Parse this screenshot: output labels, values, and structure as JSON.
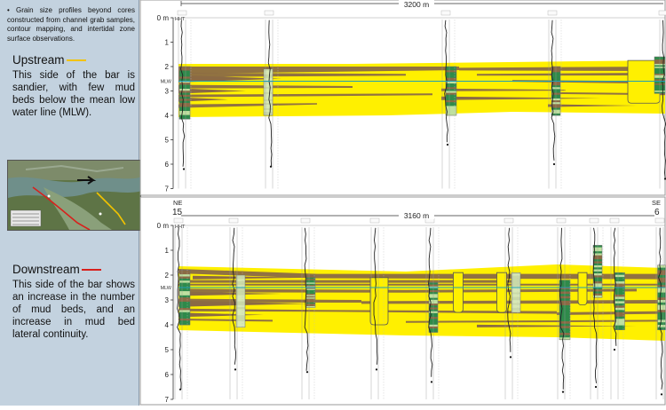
{
  "sidebar": {
    "note": "Grain size profiles beyond cores constructed from channel grab samples, contour mapping, and intertidal zone surface observations.",
    "upstream": {
      "title": "Upstream",
      "line_color": "#f2c300",
      "text": "This side of the bar is sandier, with few mud beds below the mean low water line (MLW)."
    },
    "downstream": {
      "title": "Downstream",
      "line_color": "#d8201c",
      "text": "This side of the bar shows an increase in the number of mud beds, and an increase in mud bed lateral continuity."
    }
  },
  "colors": {
    "sand": "#fff000",
    "mud": "#8b6a44",
    "green": "#2e8a4a",
    "water": "#1e9fb5"
  },
  "upper_panel": {
    "distance_label": "3200 m",
    "axis": {
      "ticks": [
        "0 m",
        "1",
        "2",
        "3",
        "4",
        "5",
        "6",
        "7"
      ],
      "hht": "HHT",
      "mlw": "MLW"
    }
  },
  "lower_panel": {
    "distance_label": "3160 m",
    "left_end": {
      "dir": "NE",
      "num": "15"
    },
    "right_end": {
      "dir": "SE",
      "num": "6"
    },
    "axis": {
      "ticks": [
        "0 m",
        "1",
        "2",
        "3",
        "4",
        "5",
        "6",
        "7"
      ],
      "hht": "HHT",
      "mlw": "MLW"
    }
  }
}
